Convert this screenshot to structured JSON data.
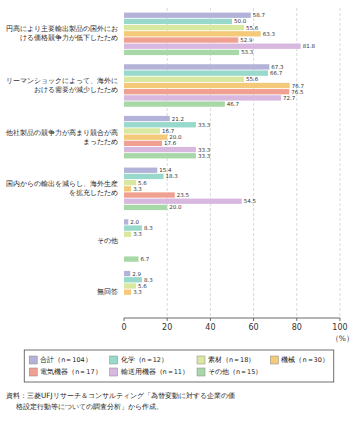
{
  "chart_data": {
    "type": "bar",
    "orientation": "horizontal",
    "categories": [
      "円高により主要輸出製品の国外にお\nける価格競争力が低下したため",
      "リーマンショックによって、海外に\nおける需要が減少したため",
      "他社製品の競争力が高まり競合が高\nまったため",
      "国内からの輸出を減らし、海外生産\nを拡充したため",
      "その他",
      "無回答"
    ],
    "series": [
      {
        "name": "合計（n＝104）",
        "color": "#b3b3d9",
        "values": [
          58.7,
          67.3,
          21.2,
          15.4,
          2.0,
          2.9
        ],
        "value_labels": [
          "58.7",
          "67.3",
          "21.2",
          "15.4",
          "2.0",
          "2.9"
        ]
      },
      {
        "name": "化学（n＝12）",
        "color": "#99d9cc",
        "values": [
          50.0,
          66.7,
          33.3,
          18.3,
          8.3,
          8.3
        ],
        "value_labels": [
          "50.0",
          "66.7",
          "33.3",
          "18.3",
          "8.3",
          "8.3"
        ]
      },
      {
        "name": "素材（n＝18）",
        "color": "#d9e8a0",
        "values": [
          55.6,
          55.6,
          16.7,
          5.6,
          3.3,
          5.6
        ],
        "value_labels": [
          "55.6",
          "55.6",
          "16.7",
          "5.6",
          "3.3",
          "5.6"
        ]
      },
      {
        "name": "機械（n＝30）",
        "color": "#f5c97a",
        "values": [
          63.3,
          76.7,
          20.0,
          3.3,
          0.0,
          3.3
        ],
        "value_labels": [
          "63.3",
          "76.7",
          "20.0",
          "3.3",
          null,
          "3.3"
        ]
      },
      {
        "name": "電気機器（n＝17）",
        "color": "#f0a090",
        "values": [
          52.9,
          76.5,
          17.6,
          23.5,
          0.0,
          0.0
        ],
        "value_labels": [
          "52.9",
          "76.5",
          "17.6",
          "23.5",
          null,
          null
        ]
      },
      {
        "name": "輸送用機器（n＝11）",
        "color": "#d9b8e0",
        "values": [
          81.8,
          72.7,
          33.3,
          54.5,
          0.0,
          0.0
        ],
        "value_labels": [
          "81.8",
          "72.7",
          "33.3",
          "54.5",
          null,
          null
        ]
      },
      {
        "name": "その他（n＝15）",
        "color": "#a8d8a8",
        "values": [
          53.3,
          46.7,
          33.3,
          20.0,
          6.7,
          0.0
        ],
        "value_labels": [
          "53.3",
          "46.7",
          "33.3",
          "20.0",
          "6.7",
          null
        ]
      }
    ],
    "xlabel": "（%）",
    "xlim": [
      0,
      100
    ],
    "xticks": [
      0,
      20,
      40,
      60,
      80,
      100
    ],
    "grid": true,
    "data_labels": true,
    "legend": "bottom",
    "annotations": [
      "資料：三菱UFJリサーチ＆コンサルティング「為替変動に対する企業の価",
      "格設定行動等についての調査分析」から作成。"
    ]
  }
}
